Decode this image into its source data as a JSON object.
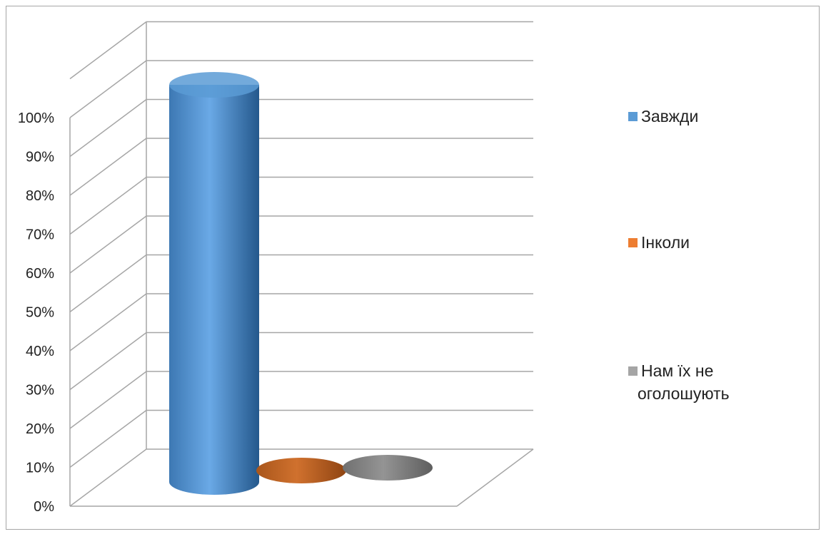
{
  "chart_data": {
    "type": "bar",
    "style": "3d-cylinder",
    "categories": [
      ""
    ],
    "series": [
      {
        "name": "Завжди",
        "values": [
          100
        ],
        "color": "#5b9bd5"
      },
      {
        "name": "Інколи",
        "values": [
          0
        ],
        "color": "#ed7d31"
      },
      {
        "name": "Нам їх не оголошують",
        "values": [
          0
        ],
        "color": "#a5a5a5"
      }
    ],
    "ylim": [
      0,
      100
    ],
    "yticks": [
      "0%",
      "10%",
      "20%",
      "30%",
      "40%",
      "50%",
      "60%",
      "70%",
      "80%",
      "90%",
      "100%"
    ],
    "y_unit": "%",
    "grid": true,
    "legend_position": "right",
    "title": "",
    "xlabel": "",
    "ylabel": ""
  }
}
